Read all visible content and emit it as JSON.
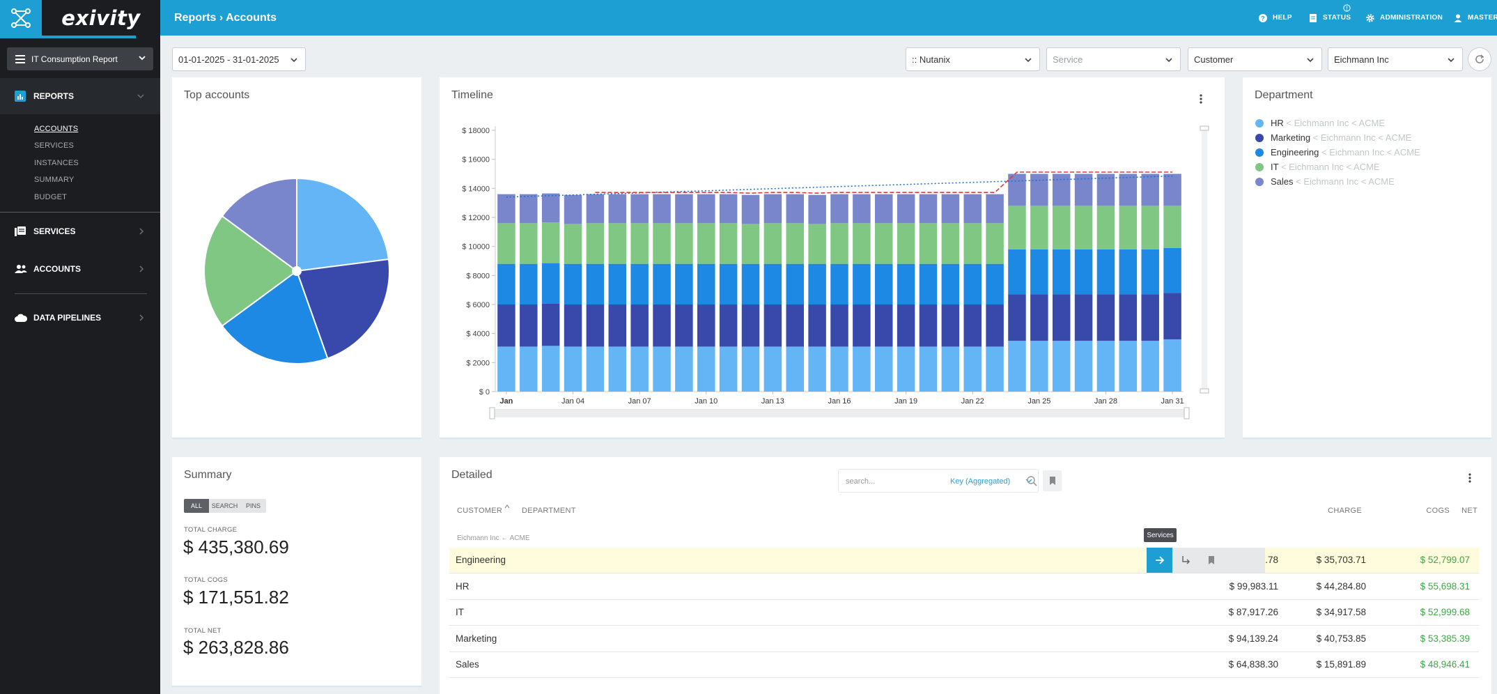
{
  "app": {
    "brand": "exivity",
    "breadcrumb": "Reports › Accounts"
  },
  "topnav": {
    "help": "HELP",
    "status": "STATUS",
    "administration": "ADMINISTRATION",
    "master": "MASTER"
  },
  "sidebar": {
    "report_select": "IT Consumption Report",
    "reports": "REPORTS",
    "report_items": [
      "ACCOUNTS",
      "SERVICES",
      "INSTANCES",
      "SUMMARY",
      "BUDGET"
    ],
    "services": "SERVICES",
    "accounts": "ACCOUNTS",
    "pipelines": "DATA PIPELINES"
  },
  "filters": {
    "date_range": "01-01-2025 - 31-01-2025",
    "provider": ":: Nutanix",
    "service_placeholder": "Service",
    "level": "Customer",
    "account": "Eichmann Inc"
  },
  "top_accounts": {
    "title": "Top accounts"
  },
  "timeline": {
    "title": "Timeline"
  },
  "department": {
    "title": "Department",
    "items": [
      {
        "name": "HR",
        "path": "< Eichmann Inc < ACME",
        "color": "#64b5f6"
      },
      {
        "name": "Marketing",
        "path": "< Eichmann Inc < ACME",
        "color": "#3949ab"
      },
      {
        "name": "Engineering",
        "path": "< Eichmann Inc < ACME",
        "color": "#1e88e5"
      },
      {
        "name": "IT",
        "path": "< Eichmann Inc < ACME",
        "color": "#81c784"
      },
      {
        "name": "Sales",
        "path": "< Eichmann Inc < ACME",
        "color": "#7986cb"
      }
    ]
  },
  "summary": {
    "title": "Summary",
    "tabs": [
      "ALL",
      "SEARCH",
      "PINS"
    ],
    "total_charge_label": "TOTAL CHARGE",
    "total_charge": "$ 435,380.69",
    "total_cogs_label": "TOTAL COGS",
    "total_cogs": "$ 171,551.82",
    "total_net_label": "TOTAL NET",
    "total_net": "$ 263,828.86"
  },
  "detailed": {
    "title": "Detailed",
    "search_placeholder": "search...",
    "key_select": "Key (Aggregated)",
    "headers": {
      "customer": "CUSTOMER",
      "department": "DEPARTMENT",
      "charge": "CHARGE",
      "cogs": "COGS",
      "net": "NET"
    },
    "group_label": "Eichmann Inc ← ACME",
    "tooltip": "Services",
    "rows": [
      {
        "name": "Engineering",
        "charge": "$ 88,502.78",
        "cogs": "$ 35,703.71",
        "net": "$ 52,799.07"
      },
      {
        "name": "HR",
        "charge": "$ 99,983.11",
        "cogs": "$ 44,284.80",
        "net": "$ 55,698.31"
      },
      {
        "name": "IT",
        "charge": "$ 87,917.26",
        "cogs": "$ 34,917.58",
        "net": "$ 52,999.68"
      },
      {
        "name": "Marketing",
        "charge": "$ 94,139.24",
        "cogs": "$ 40,753.85",
        "net": "$ 53,385.39"
      },
      {
        "name": "Sales",
        "charge": "$ 64,838.30",
        "cogs": "$ 15,891.89",
        "net": "$ 48,946.41"
      }
    ]
  },
  "chart_data": [
    {
      "type": "pie",
      "categories": [
        "HR",
        "Marketing",
        "Engineering",
        "IT",
        "Sales"
      ],
      "values": [
        99983.11,
        94139.24,
        88502.78,
        87917.26,
        64838.3
      ],
      "colors": [
        "#64b5f6",
        "#3949ab",
        "#1e88e5",
        "#81c784",
        "#7986cb"
      ]
    },
    {
      "type": "bar",
      "stacked": true,
      "ylim": [
        0,
        18000
      ],
      "yticks": [
        "$ 0",
        "$ 2000",
        "$ 4000",
        "$ 6000",
        "$ 8000",
        "$ 10000",
        "$ 12000",
        "$ 14000",
        "$ 16000",
        "$ 18000"
      ],
      "xtick_labels": [
        "Jan",
        "Jan 04",
        "Jan 07",
        "Jan 10",
        "Jan 13",
        "Jan 16",
        "Jan 19",
        "Jan 22",
        "Jan 25",
        "Jan 28",
        "Jan 31"
      ],
      "categories": [
        "Jan 01",
        "Jan 02",
        "Jan 03",
        "Jan 04",
        "Jan 05",
        "Jan 06",
        "Jan 07",
        "Jan 08",
        "Jan 09",
        "Jan 10",
        "Jan 11",
        "Jan 12",
        "Jan 13",
        "Jan 14",
        "Jan 15",
        "Jan 16",
        "Jan 17",
        "Jan 18",
        "Jan 19",
        "Jan 20",
        "Jan 21",
        "Jan 22",
        "Jan 23",
        "Jan 24",
        "Jan 25",
        "Jan 26",
        "Jan 27",
        "Jan 28",
        "Jan 29",
        "Jan 30",
        "Jan 31"
      ],
      "series": [
        {
          "name": "HR",
          "color": "#64b5f6",
          "values": [
            3100,
            3100,
            3150,
            3100,
            3100,
            3100,
            3100,
            3100,
            3100,
            3100,
            3100,
            3100,
            3100,
            3100,
            3100,
            3100,
            3100,
            3100,
            3100,
            3100,
            3100,
            3100,
            3100,
            3500,
            3500,
            3500,
            3500,
            3500,
            3500,
            3500,
            3600
          ]
        },
        {
          "name": "Marketing",
          "color": "#3949ab",
          "values": [
            2900,
            2900,
            2900,
            2900,
            2900,
            2900,
            2900,
            2900,
            2900,
            2900,
            2900,
            2900,
            2900,
            2900,
            2900,
            2900,
            2900,
            2900,
            2900,
            2900,
            2900,
            2900,
            2900,
            3200,
            3200,
            3200,
            3200,
            3200,
            3200,
            3200,
            3200
          ]
        },
        {
          "name": "Engineering",
          "color": "#1e88e5",
          "values": [
            2800,
            2800,
            2800,
            2800,
            2800,
            2800,
            2800,
            2800,
            2800,
            2800,
            2800,
            2800,
            2800,
            2800,
            2800,
            2800,
            2800,
            2800,
            2800,
            2800,
            2800,
            2800,
            2800,
            3100,
            3100,
            3100,
            3100,
            3100,
            3100,
            3100,
            3100
          ]
        },
        {
          "name": "IT",
          "color": "#81c784",
          "values": [
            2800,
            2800,
            2800,
            2750,
            2800,
            2800,
            2800,
            2800,
            2800,
            2800,
            2800,
            2750,
            2800,
            2800,
            2750,
            2800,
            2800,
            2800,
            2800,
            2800,
            2800,
            2800,
            2800,
            3000,
            3000,
            3000,
            3000,
            3000,
            3000,
            3000,
            2900
          ]
        },
        {
          "name": "Sales",
          "color": "#7986cb",
          "values": [
            2000,
            2000,
            2000,
            2000,
            2000,
            2000,
            2000,
            2000,
            2000,
            2000,
            2000,
            2000,
            2000,
            2000,
            2000,
            2000,
            2000,
            2000,
            2000,
            2000,
            2000,
            2000,
            2000,
            2200,
            2200,
            2200,
            2200,
            2200,
            2200,
            2200,
            2200
          ]
        }
      ]
    }
  ]
}
